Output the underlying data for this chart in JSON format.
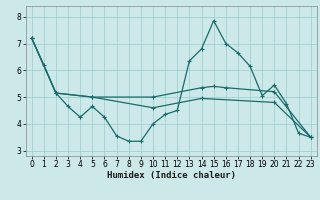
{
  "xlabel": "Humidex (Indice chaleur)",
  "bg_color": "#cce8e8",
  "grid_color": "#99cccc",
  "line_color": "#1a6b6b",
  "xlim": [
    -0.5,
    23.5
  ],
  "ylim": [
    2.8,
    8.4
  ],
  "xticks": [
    0,
    1,
    2,
    3,
    4,
    5,
    6,
    7,
    8,
    9,
    10,
    11,
    12,
    13,
    14,
    15,
    16,
    17,
    18,
    19,
    20,
    21,
    22,
    23
  ],
  "yticks": [
    3,
    4,
    5,
    6,
    7,
    8
  ],
  "line1_x": [
    0,
    1,
    2,
    3,
    4,
    5,
    6,
    7,
    8,
    9,
    10,
    11,
    12,
    13,
    14,
    15,
    16,
    17,
    18,
    19,
    20,
    21,
    22,
    23
  ],
  "line1_y": [
    7.2,
    6.2,
    5.15,
    4.65,
    4.25,
    4.65,
    4.25,
    3.55,
    3.35,
    3.35,
    4.0,
    4.35,
    4.5,
    6.35,
    6.8,
    7.85,
    7.0,
    6.65,
    6.15,
    5.05,
    5.45,
    4.75,
    3.65,
    3.5
  ],
  "line2_x": [
    0,
    2,
    5,
    10,
    14,
    15,
    16,
    20,
    23
  ],
  "line2_y": [
    7.2,
    5.15,
    5.0,
    5.0,
    5.35,
    5.4,
    5.35,
    5.2,
    3.5
  ],
  "line3_x": [
    0,
    2,
    5,
    10,
    14,
    20,
    23
  ],
  "line3_y": [
    7.2,
    5.15,
    5.0,
    4.6,
    4.95,
    4.8,
    3.5
  ]
}
